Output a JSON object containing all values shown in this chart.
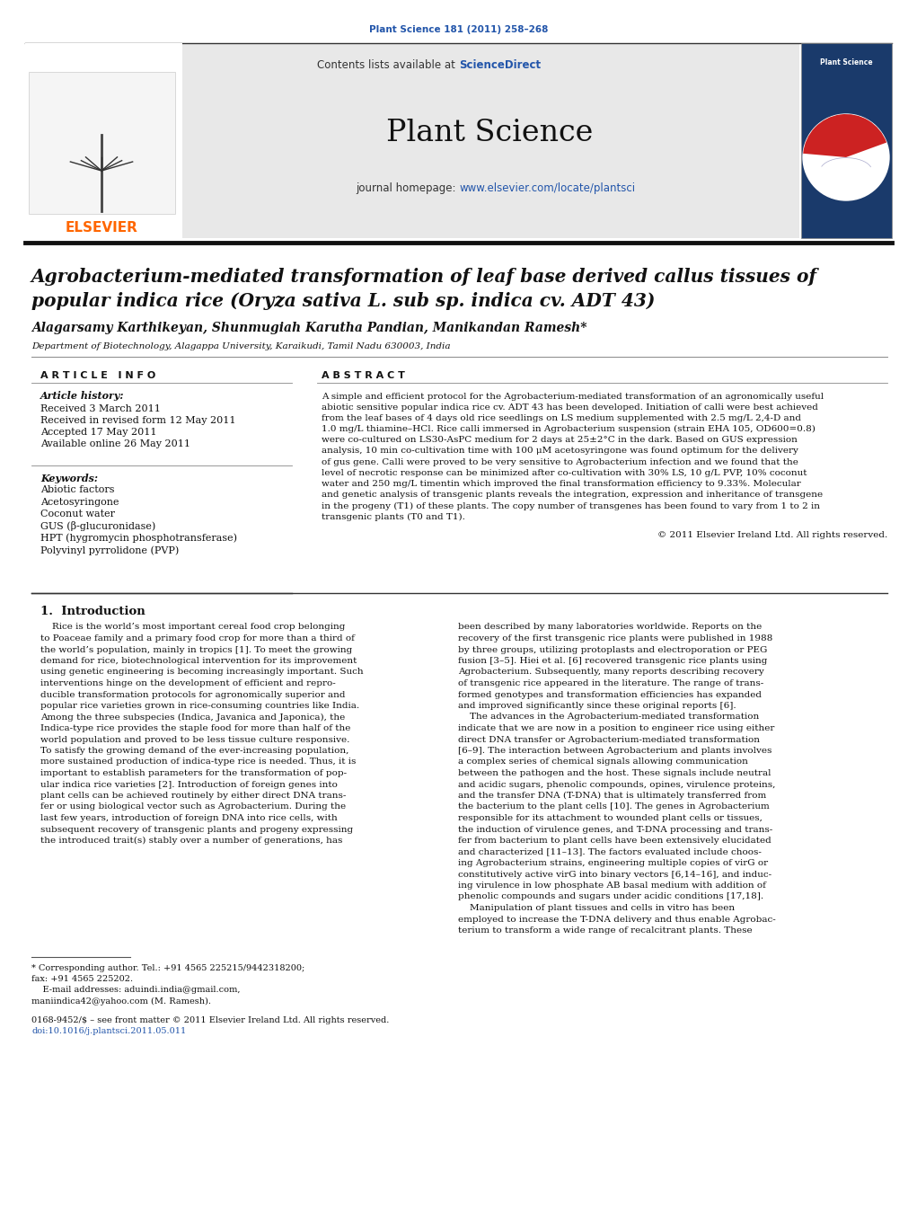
{
  "bg_color": "#ffffff",
  "journal_ref": "Plant Science 181 (2011) 258–268",
  "journal_ref_color": "#2255aa",
  "header_bg": "#e8e8e8",
  "contents_text": "Contents lists available at ",
  "sciencedirect_text": "ScienceDirect",
  "sciencedirect_color": "#2255aa",
  "journal_name": "Plant Science",
  "homepage_label": "journal homepage: ",
  "homepage_url": "www.elsevier.com/locate/plantsci",
  "homepage_url_color": "#2255aa",
  "elsevier_color": "#FF6600",
  "title_line1": "Agrobacterium-mediated transformation of leaf base derived callus tissues of",
  "title_line2": "popular indica rice (Oryza sativa L. sub sp. indica cv. ADT 43)",
  "authors": "Alagarsamy Karthikeyan, Shunmugiah Karutha Pandian, Manikandan Ramesh*",
  "affiliation": "Department of Biotechnology, Alagappa University, Karaikudi, Tamil Nadu 630003, India",
  "article_info_header": "A R T I C L E   I N F O",
  "abstract_header": "A B S T R A C T",
  "article_history_label": "Article history:",
  "received": "Received 3 March 2011",
  "received_revised": "Received in revised form 12 May 2011",
  "accepted": "Accepted 17 May 2011",
  "available": "Available online 26 May 2011",
  "keywords_label": "Keywords:",
  "keywords": [
    "Abiotic factors",
    "Acetosyringone",
    "Coconut water",
    "GUS (β-glucuronidase)",
    "HPT (hygromycin phosphotransferase)",
    "Polyvinyl pyrrolidone (PVP)"
  ],
  "abstract_lines": [
    "A simple and efficient protocol for the Agrobacterium-mediated transformation of an agronomically useful",
    "abiotic sensitive popular indica rice cv. ADT 43 has been developed. Initiation of calli were best achieved",
    "from the leaf bases of 4 days old rice seedlings on LS medium supplemented with 2.5 mg/L 2,4-D and",
    "1.0 mg/L thiamine–HCl. Rice calli immersed in Agrobacterium suspension (strain EHA 105, OD600=0.8)",
    "were co-cultured on LS30-AsPC medium for 2 days at 25±2°C in the dark. Based on GUS expression",
    "analysis, 10 min co-cultivation time with 100 μM acetosyringone was found optimum for the delivery",
    "of gus gene. Calli were proved to be very sensitive to Agrobacterium infection and we found that the",
    "level of necrotic response can be minimized after co-cultivation with 30% LS, 10 g/L PVP, 10% coconut",
    "water and 250 mg/L timentin which improved the final transformation efficiency to 9.33%. Molecular",
    "and genetic analysis of transgenic plants reveals the integration, expression and inheritance of transgene",
    "in the progeny (T1) of these plants. The copy number of transgenes has been found to vary from 1 to 2 in",
    "transgenic plants (T0 and T1)."
  ],
  "copyright": "© 2011 Elsevier Ireland Ltd. All rights reserved.",
  "intro_header": "1.  Introduction",
  "intro_col1_lines": [
    "    Rice is the world’s most important cereal food crop belonging",
    "to Poaceae family and a primary food crop for more than a third of",
    "the world’s population, mainly in tropics [1]. To meet the growing",
    "demand for rice, biotechnological intervention for its improvement",
    "using genetic engineering is becoming increasingly important. Such",
    "interventions hinge on the development of efficient and repro-",
    "ducible transformation protocols for agronomically superior and",
    "popular rice varieties grown in rice-consuming countries like India.",
    "Among the three subspecies (Indica, Javanica and Japonica), the",
    "Indica-type rice provides the staple food for more than half of the",
    "world population and proved to be less tissue culture responsive.",
    "To satisfy the growing demand of the ever-increasing population,",
    "more sustained production of indica-type rice is needed. Thus, it is",
    "important to establish parameters for the transformation of pop-",
    "ular indica rice varieties [2]. Introduction of foreign genes into",
    "plant cells can be achieved routinely by either direct DNA trans-",
    "fer or using biological vector such as Agrobacterium. During the",
    "last few years, introduction of foreign DNA into rice cells, with",
    "subsequent recovery of transgenic plants and progeny expressing",
    "the introduced trait(s) stably over a number of generations, has"
  ],
  "intro_col2_lines": [
    "been described by many laboratories worldwide. Reports on the",
    "recovery of the first transgenic rice plants were published in 1988",
    "by three groups, utilizing protoplasts and electroporation or PEG",
    "fusion [3–5]. Hiei et al. [6] recovered transgenic rice plants using",
    "Agrobacterium. Subsequently, many reports describing recovery",
    "of transgenic rice appeared in the literature. The range of trans-",
    "formed genotypes and transformation efficiencies has expanded",
    "and improved significantly since these original reports [6].",
    "    The advances in the Agrobacterium-mediated transformation",
    "indicate that we are now in a position to engineer rice using either",
    "direct DNA transfer or Agrobacterium-mediated transformation",
    "[6–9]. The interaction between Agrobacterium and plants involves",
    "a complex series of chemical signals allowing communication",
    "between the pathogen and the host. These signals include neutral",
    "and acidic sugars, phenolic compounds, opines, virulence proteins,",
    "and the transfer DNA (T-DNA) that is ultimately transferred from",
    "the bacterium to the plant cells [10]. The genes in Agrobacterium",
    "responsible for its attachment to wounded plant cells or tissues,",
    "the induction of virulence genes, and T-DNA processing and trans-",
    "fer from bacterium to plant cells have been extensively elucidated",
    "and characterized [11–13]. The factors evaluated include choos-",
    "ing Agrobacterium strains, engineering multiple copies of virG or",
    "constitutively active virG into binary vectors [6,14–16], and induc-",
    "ing virulence in low phosphate AB basal medium with addition of",
    "phenolic compounds and sugars under acidic conditions [17,18].",
    "    Manipulation of plant tissues and cells in vitro has been",
    "employed to increase the T-DNA delivery and thus enable Agrobac-",
    "terium to transform a wide range of recalcitrant plants. These"
  ],
  "footnote_lines": [
    "* Corresponding author. Tel.: +91 4565 225215/9442318200;",
    "fax: +91 4565 225202.",
    "    E-mail addresses: aduindi.india@gmail.com,",
    "maniindica42@yahoo.com (M. Ramesh)."
  ],
  "issn1": "0168-9452/$ – see front matter © 2011 Elsevier Ireland Ltd. All rights reserved.",
  "issn2": "doi:10.1016/j.plantsci.2011.05.011"
}
